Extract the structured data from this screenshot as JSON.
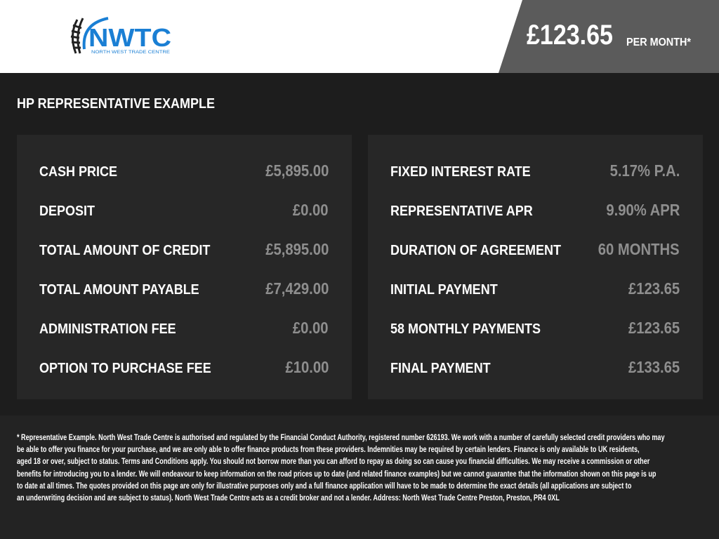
{
  "header": {
    "logo_text": "NWTC",
    "logo_subtext": "NORTH WEST TRADE CENTRE",
    "price": "£123.65",
    "per_month": "PER MONTH*",
    "brand_color": "#1a7fd4"
  },
  "title": "HP REPRESENTATIVE EXAMPLE",
  "left": [
    {
      "label": "CASH PRICE",
      "value": "£5,895.00"
    },
    {
      "label": "DEPOSIT",
      "value": "£0.00"
    },
    {
      "label": "TOTAL AMOUNT OF CREDIT",
      "value": "£5,895.00"
    },
    {
      "label": "TOTAL AMOUNT PAYABLE",
      "value": "£7,429.00"
    },
    {
      "label": "ADMINISTRATION FEE",
      "value": "£0.00"
    },
    {
      "label": "OPTION TO PURCHASE FEE",
      "value": "£10.00"
    }
  ],
  "right": [
    {
      "label": "FIXED INTEREST RATE",
      "value": "5.17% P.A."
    },
    {
      "label": "REPRESENTATIVE APR",
      "value": "9.90% APR"
    },
    {
      "label": "DURATION OF AGREEMENT",
      "value": "60 MONTHS"
    },
    {
      "label": "INITIAL PAYMENT",
      "value": "£123.65"
    },
    {
      "label": "58 MONTHLY PAYMENTS",
      "value": "£123.65"
    },
    {
      "label": "FINAL PAYMENT",
      "value": "£133.65"
    }
  ],
  "disclaimer": [
    "* Representative Example. North West Trade Centre is authorised and regulated by the Financial Conduct Authority, registered number 626193. We work with a number of carefully selected credit providers who may",
    "be able to offer you finance for your purchase, and we are only able to offer finance products from these providers. Indemnities may be required by certain lenders. Finance is only available to UK residents,",
    "aged 18 or over, subject to status. Terms and Conditions apply. You should not borrow more than you can afford to repay as doing so can cause you financial difficulties. We may receive a commission or other",
    "benefits for introducing you to a lender. We will endeavour to keep information on the road prices up to date (and related finance examples) but we cannot guarantee that the information shown on this page is up",
    "to date at all times. The quotes provided on this page are only for illustrative purposes only and a full finance application will have to be made to determine the exact details (all applications are subject to",
    "an underwriting decision and are subject to status). North West Trade Centre acts as a credit broker and not a lender. Address: North West Trade Centre Preston, Preston, PR4 0XL"
  ]
}
